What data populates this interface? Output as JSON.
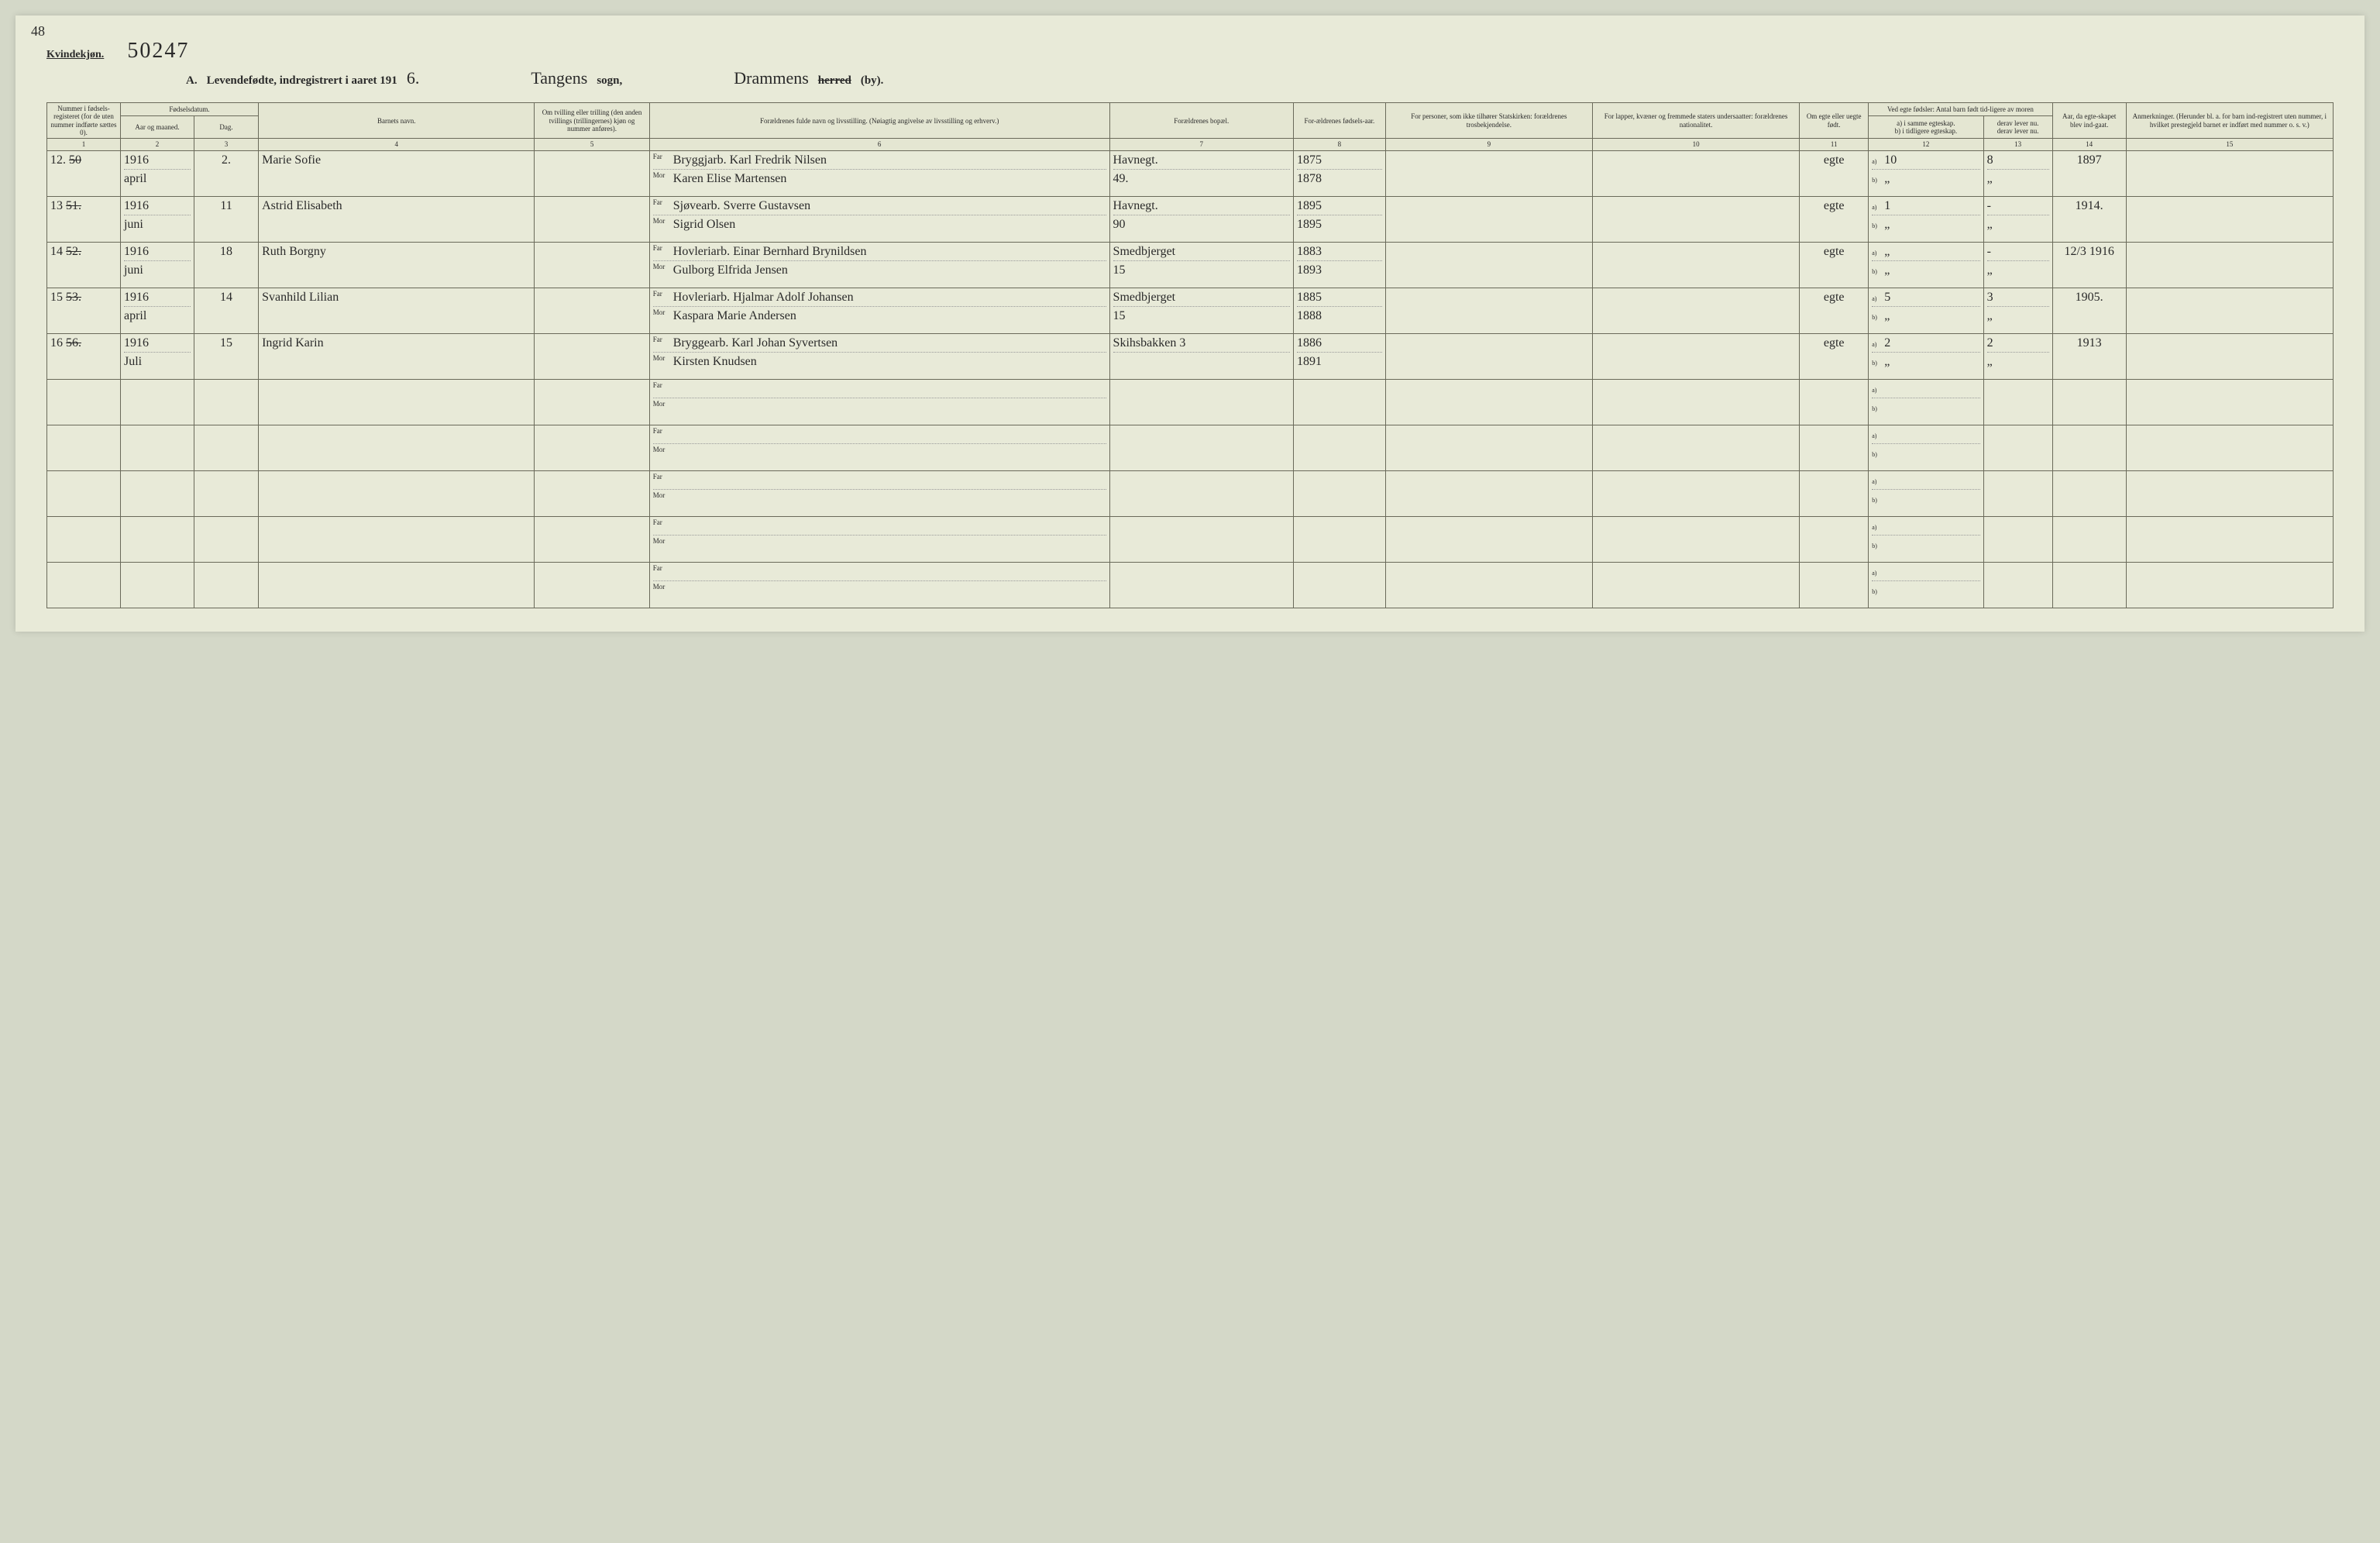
{
  "page_number_tl": "48",
  "header": {
    "kvind": "Kvindekjøn.",
    "stamp": "50247",
    "title_prefix": "A.",
    "title_main": "Levendefødte, indregistrert i aaret 191",
    "year_suffix": "6.",
    "sogn_value": "Tangens",
    "sogn_label": "sogn,",
    "herred_value": "Drammens",
    "herred_strike": "herred",
    "herred_suffix": "(by)."
  },
  "columns": {
    "c1": "Nummer i fødsels-registeret (for de uten nummer indførte sættes 0).",
    "c2_top": "Fødselsdatum.",
    "c2a": "Aar og maaned.",
    "c2b": "Dag.",
    "c4": "Barnets navn.",
    "c5": "Om tvilling eller trilling (den anden tvillings (trillingernes) kjøn og nummer anføres).",
    "c6": "Forældrenes fulde navn og livsstilling. (Nøiagtig angivelse av livsstilling og erhverv.)",
    "c7": "Forældrenes bopæl.",
    "c8": "For-ældrenes fødsels-aar.",
    "c9": "For personer, som ikke tilhører Statskirken: forældrenes trosbekjendelse.",
    "c10": "For lapper, kvæner og fremmede staters undersaatter: forældrenes nationalitet.",
    "c11": "Om egte eller uegte født.",
    "c12_top": "Ved egte fødsler: Antal barn født tid-ligere av moren",
    "c12a": "a) i samme egteskap.",
    "c12b": "b) i tidligere egteskap.",
    "c13a": "derav lever nu.",
    "c13b": "derav lever nu.",
    "c14": "Aar, da egte-skapet blev ind-gaat.",
    "c15": "Anmerkninger. (Herunder bl. a. for barn ind-registrert uten nummer, i hvilket prestegjeld barnet er indført med nummer o. s. v.)"
  },
  "colnums": [
    "1",
    "2",
    "3",
    "4",
    "5",
    "6",
    "7",
    "8",
    "9",
    "10",
    "11",
    "12",
    "13",
    "14",
    "15"
  ],
  "far_label": "Far",
  "mor_label": "Mor",
  "a_label": "a)",
  "b_label": "b)",
  "rows": [
    {
      "num_out": "12.",
      "num_strike": "50",
      "year": "1916",
      "month": "april",
      "day": "2.",
      "name": "Marie Sofie",
      "far": "Bryggjarb. Karl Fredrik Nilsen",
      "mor": "Karen Elise Martensen",
      "bopel": "Havnegt.",
      "bopel2": "49.",
      "far_aar": "1875",
      "mor_aar": "1878",
      "egte": "egte",
      "a_same": "10",
      "a_lever": "8",
      "b_same": "„",
      "b_lever": "„",
      "egteskap_aar": "1897"
    },
    {
      "num_out": "13",
      "num_strike": "51.",
      "year": "1916",
      "month": "juni",
      "day": "11",
      "name": "Astrid Elisabeth",
      "far": "Sjøvearb. Sverre Gustavsen",
      "mor": "Sigrid Olsen",
      "bopel": "Havnegt.",
      "bopel2": "90",
      "far_aar": "1895",
      "mor_aar": "1895",
      "egte": "egte",
      "a_same": "1",
      "a_lever": "-",
      "b_same": "„",
      "b_lever": "„",
      "egteskap_aar": "1914."
    },
    {
      "num_out": "14",
      "num_strike": "52.",
      "year": "1916",
      "month": "juni",
      "day": "18",
      "name": "Ruth Borgny",
      "far": "Hovleriarb. Einar Bernhard Brynildsen",
      "mor": "Gulborg Elfrida Jensen",
      "bopel": "Smedbjerget",
      "bopel2": "15",
      "far_aar": "1883",
      "mor_aar": "1893",
      "egte": "egte",
      "a_same": "„",
      "a_lever": "-",
      "b_same": "„",
      "b_lever": "„",
      "egteskap_aar": "12/3 1916"
    },
    {
      "num_out": "15",
      "num_strike": "53.",
      "year": "1916",
      "month": "april",
      "day": "14",
      "name": "Svanhild Lilian",
      "far": "Hovleriarb. Hjalmar Adolf Johansen",
      "mor": "Kaspara Marie Andersen",
      "bopel": "Smedbjerget",
      "bopel2": "15",
      "far_aar": "1885",
      "mor_aar": "1888",
      "egte": "egte",
      "a_same": "5",
      "a_lever": "3",
      "b_same": "„",
      "b_lever": "„",
      "egteskap_aar": "1905."
    },
    {
      "num_out": "16",
      "num_strike": "56.",
      "year": "1916",
      "month": "Juli",
      "day": "15",
      "name": "Ingrid Karin",
      "far": "Bryggearb. Karl Johan Syvertsen",
      "mor": "Kirsten Knudsen",
      "bopel": "Skihsbakken 3",
      "bopel2": "",
      "far_aar": "1886",
      "mor_aar": "1891",
      "egte": "egte",
      "a_same": "2",
      "a_lever": "2",
      "b_same": "„",
      "b_lever": "„",
      "egteskap_aar": "1913"
    }
  ],
  "empty_rows": 5,
  "colors": {
    "page_bg": "#e8ead8",
    "body_bg": "#d4d8c8",
    "border": "#6a6a5a",
    "text": "#2a2a2a"
  }
}
